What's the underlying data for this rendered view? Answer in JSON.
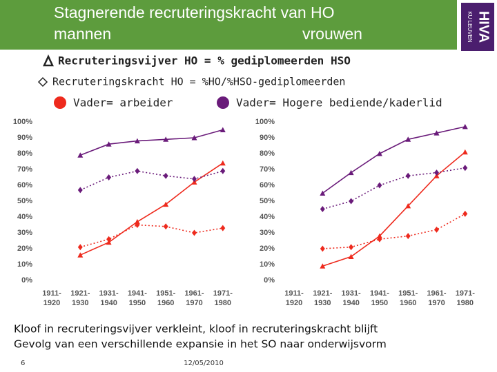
{
  "slide": {
    "title_line1": "Stagnerende recruteringskracht van HO",
    "title_left": "mannen",
    "title_right": "vrouwen",
    "logo_top": "HIVA",
    "logo_bottom": "KU LEUVEN",
    "bullet1": "Recruteringsvijver HO = % gediplomeerden HSO",
    "bullet2": "Recruteringskracht HO = %HO/%HSO-gediplomeerden",
    "legend_red": "Vader= arbeider",
    "legend_purple": "Vader= Hogere bediende/kaderlid",
    "conclusion1": "Kloof in recruteringsvijver verkleint, kloof in recruteringskracht blijft",
    "conclusion2": "Gevolg van een verschillende expansie in het SO naar onderwijsvorm",
    "page": "6",
    "date": "12/05/2010"
  },
  "chart_data": [
    {
      "type": "line",
      "categories": [
        "1911-1920",
        "1921-1930",
        "1931-1940",
        "1941-1950",
        "1951-1960",
        "1961-1970",
        "1971-1980"
      ],
      "ylim": [
        0,
        100
      ],
      "yticks": [
        {
          "value": 0,
          "label": "0%"
        },
        {
          "value": 10,
          "label": "10%"
        },
        {
          "value": 20,
          "label": "20%"
        },
        {
          "value": 30,
          "label": "30%"
        },
        {
          "value": 40,
          "label": "40%"
        },
        {
          "value": 50,
          "label": "50%"
        },
        {
          "value": 60,
          "label": "60%"
        },
        {
          "value": 70,
          "label": "70%"
        },
        {
          "value": 80,
          "label": "80%"
        },
        {
          "value": 90,
          "label": "90%"
        },
        {
          "value": 100,
          "label": "100%"
        }
      ],
      "series": [
        {
          "color": "#ee2a1d",
          "dash": false,
          "marker": "triangle",
          "values": [
            null,
            16,
            24,
            37,
            48,
            62,
            74
          ]
        },
        {
          "color": "#ee2a1d",
          "dash": true,
          "marker": "diamond",
          "values": [
            null,
            21,
            26,
            35,
            34,
            30,
            33
          ]
        },
        {
          "color": "#6a1b7a",
          "dash": false,
          "marker": "triangle",
          "values": [
            null,
            79,
            86,
            88,
            89,
            90,
            95
          ]
        },
        {
          "color": "#6a1b7a",
          "dash": true,
          "marker": "diamond",
          "values": [
            null,
            57,
            65,
            69,
            66,
            64,
            69
          ]
        }
      ]
    },
    {
      "type": "line",
      "categories": [
        "1911-1920",
        "1921-1930",
        "1931-1940",
        "1941-1950",
        "1951-1960",
        "1961-1970",
        "1971-1980"
      ],
      "ylim": [
        0,
        100
      ],
      "yticks": [
        {
          "value": 0,
          "label": "0%"
        },
        {
          "value": 10,
          "label": "10%"
        },
        {
          "value": 20,
          "label": "20%"
        },
        {
          "value": 30,
          "label": "30%"
        },
        {
          "value": 40,
          "label": "40%"
        },
        {
          "value": 50,
          "label": "50%"
        },
        {
          "value": 60,
          "label": "60%"
        },
        {
          "value": 70,
          "label": "70%"
        },
        {
          "value": 80,
          "label": "80%"
        },
        {
          "value": 90,
          "label": "90%"
        },
        {
          "value": 100,
          "label": "100%"
        }
      ],
      "series": [
        {
          "color": "#ee2a1d",
          "dash": false,
          "marker": "triangle",
          "values": [
            null,
            9,
            15,
            28,
            47,
            66,
            81
          ]
        },
        {
          "color": "#ee2a1d",
          "dash": true,
          "marker": "diamond",
          "values": [
            null,
            20,
            21,
            26,
            28,
            32,
            42
          ]
        },
        {
          "color": "#6a1b7a",
          "dash": false,
          "marker": "triangle",
          "values": [
            null,
            55,
            68,
            80,
            89,
            93,
            97
          ]
        },
        {
          "color": "#6a1b7a",
          "dash": true,
          "marker": "diamond",
          "values": [
            null,
            45,
            50,
            60,
            66,
            68,
            71
          ]
        }
      ]
    }
  ]
}
